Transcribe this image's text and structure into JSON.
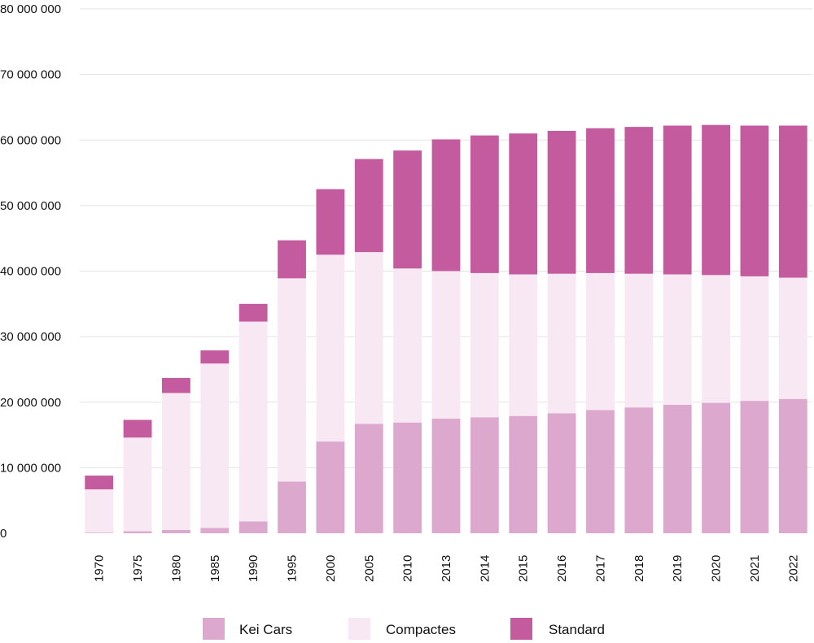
{
  "chart_data": {
    "type": "bar",
    "stacked": true,
    "categories": [
      "1970",
      "1975",
      "1980",
      "1985",
      "1990",
      "1995",
      "2000",
      "2005",
      "2010",
      "2013",
      "2014",
      "2015",
      "2016",
      "2017",
      "2018",
      "2019",
      "2020",
      "2021",
      "2022"
    ],
    "series": [
      {
        "name": "Kei Cars",
        "color": "#dca8ce",
        "values": [
          100000,
          300000,
          500000,
          800000,
          1800000,
          7900000,
          14000000,
          16700000,
          16900000,
          17500000,
          17700000,
          17900000,
          18300000,
          18800000,
          19200000,
          19600000,
          19900000,
          20200000,
          20500000
        ]
      },
      {
        "name": "Compactes",
        "color": "#f7e8f3",
        "values": [
          6600000,
          14300000,
          20900000,
          25100000,
          30500000,
          31000000,
          28500000,
          26200000,
          23500000,
          22500000,
          22000000,
          21600000,
          21300000,
          20900000,
          20400000,
          19900000,
          19500000,
          19000000,
          18500000
        ]
      },
      {
        "name": "Standard",
        "color": "#c45b9f",
        "values": [
          2100000,
          2700000,
          2300000,
          2000000,
          2700000,
          5800000,
          10000000,
          14200000,
          18000000,
          20100000,
          21000000,
          21500000,
          21800000,
          22100000,
          22400000,
          22700000,
          22900000,
          23000000,
          23200000
        ]
      }
    ],
    "y_ticks": [
      "0",
      "10 000 000",
      "20 000 000",
      "30 000 000",
      "40 000 000",
      "50 000 000",
      "60 000 000",
      "70 000 000",
      "80 000 000"
    ],
    "ylim": [
      0,
      80000000
    ],
    "y_tick_step": 10000000,
    "grid": true,
    "legend_position": "bottom",
    "title": "",
    "xlabel": "",
    "ylabel": ""
  }
}
